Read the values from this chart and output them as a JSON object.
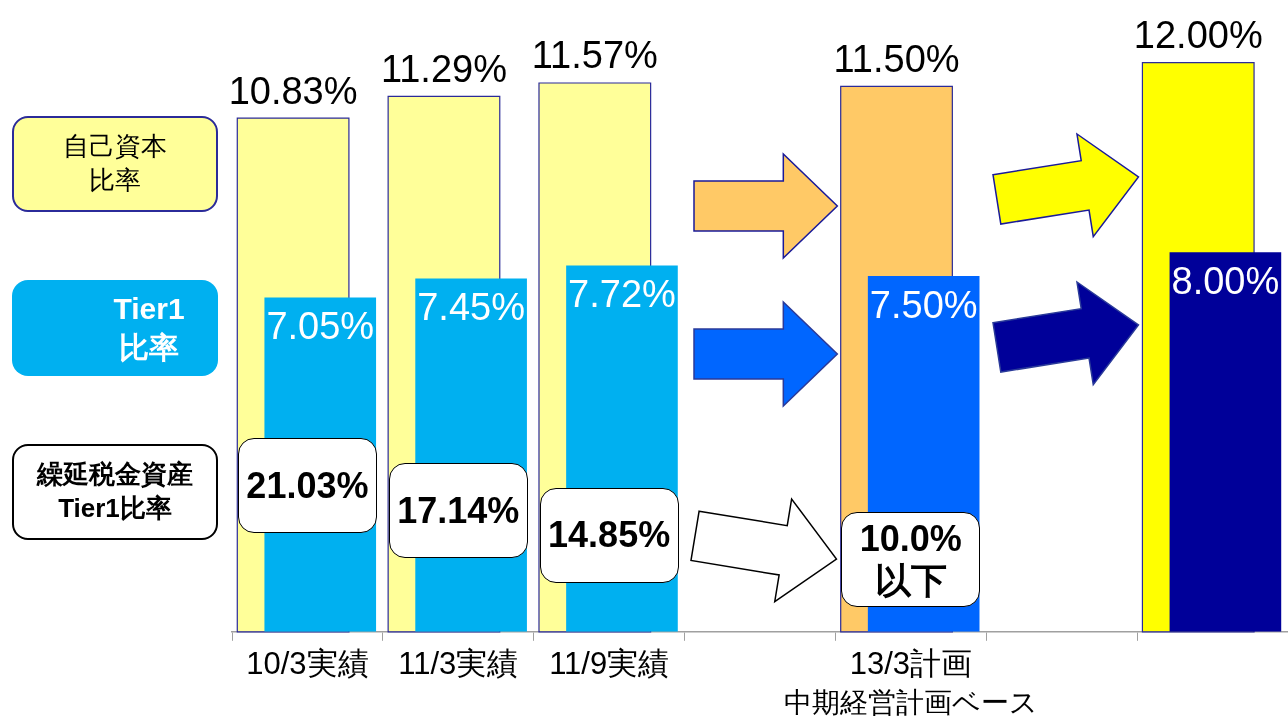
{
  "chart_data": {
    "type": "bar",
    "categories": [
      "10/3実績",
      "11/3実績",
      "11/9実績",
      null,
      "13/3計画",
      null,
      null
    ],
    "series": [
      {
        "name": "自己資本比率",
        "color": "#ffff99",
        "colors": [
          "#ffff99",
          "#ffff99",
          "#ffff99",
          null,
          "#ffc966",
          null,
          "#ffff00"
        ],
        "values": [
          10.83,
          11.29,
          11.57,
          null,
          11.5,
          null,
          12.0
        ],
        "value_labels": [
          "10.83%",
          "11.29%",
          "11.57%",
          null,
          "11.50%",
          null,
          "12.00%"
        ]
      },
      {
        "name": "Tier1比率",
        "color": "#00b0f0",
        "colors": [
          "#00b0f0",
          "#00b0f0",
          "#00b0f0",
          null,
          "#0066ff",
          null,
          "#000099"
        ],
        "values": [
          7.05,
          7.45,
          7.72,
          null,
          7.5,
          null,
          8.0
        ],
        "value_labels": [
          "7.05%",
          "7.45%",
          "7.72%",
          null,
          "7.50%",
          null,
          "8.00%"
        ]
      }
    ],
    "annotations": [
      "中期経営計画ベース",
      "繰延税金資産Tier1比率",
      "21.03%",
      "17.14%",
      "14.85%",
      "10.0%以下"
    ],
    "legend": "left",
    "tick_labels": "x"
  }
}
